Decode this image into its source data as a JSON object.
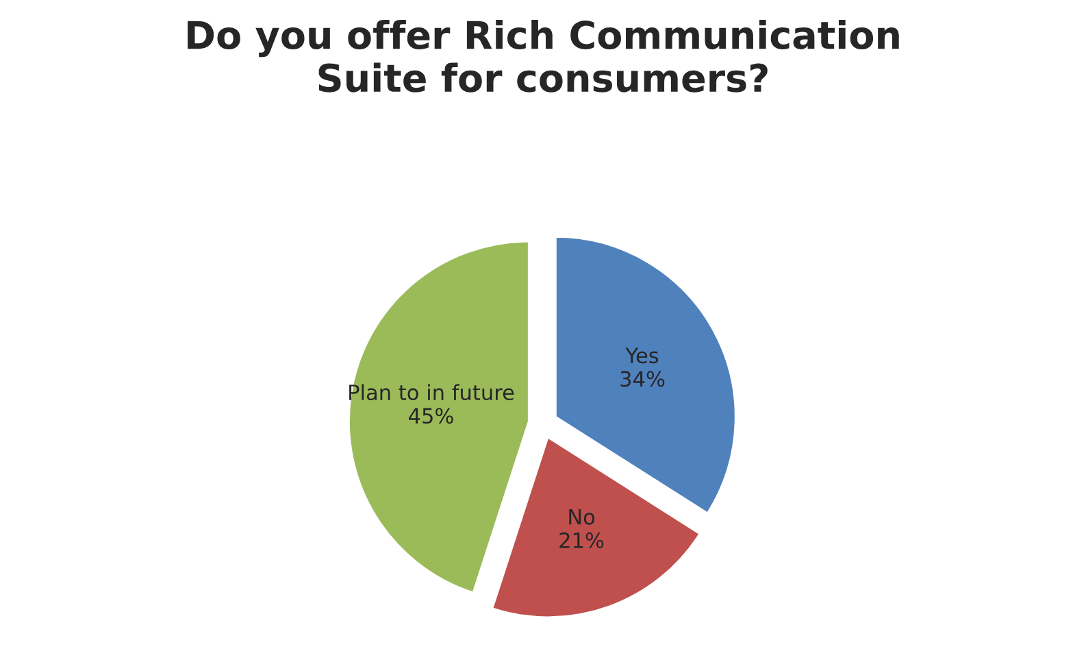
{
  "chart_data": {
    "type": "pie",
    "title": "Do you offer Rich Communication\nSuite for consumers?",
    "categories": [
      "Yes",
      "No",
      "Plan to in future"
    ],
    "values": [
      34,
      21,
      45
    ],
    "value_labels": [
      "34%",
      "21%",
      "45%"
    ],
    "colors": [
      "#4f81bd",
      "#c0504d",
      "#9bbb59"
    ]
  }
}
